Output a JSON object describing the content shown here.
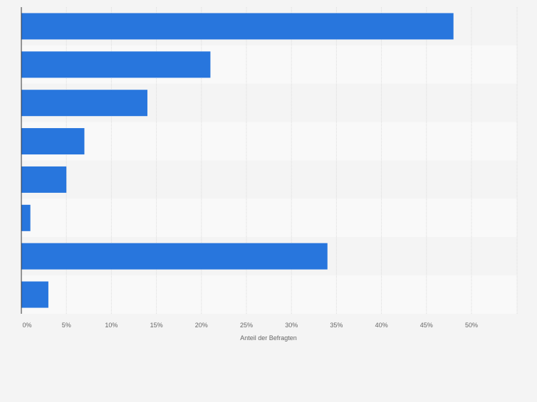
{
  "chart_data": {
    "type": "bar",
    "orientation": "horizontal",
    "categories": [
      "",
      "",
      "",
      "",
      "",
      "",
      "",
      ""
    ],
    "values": [
      48,
      21,
      14,
      7,
      5,
      1,
      34,
      3
    ],
    "xlabel": "Anteil der Befragten",
    "ylabel": "",
    "xlim": [
      0,
      55
    ],
    "x_ticks": [
      0,
      5,
      10,
      15,
      20,
      25,
      30,
      35,
      40,
      45,
      50
    ],
    "x_tick_labels": [
      "0%",
      "5%",
      "10%",
      "15%",
      "20%",
      "25%",
      "30%",
      "35%",
      "40%",
      "45%",
      "50%"
    ],
    "grid": true,
    "legend": "none",
    "colors": {
      "bar": "#2876dd",
      "background": "#f4f4f4",
      "plot_band_light": "#f9f9f9",
      "plot_band_dark": "#f4f4f4",
      "grid": "#dcdcdc",
      "axis": "#333333",
      "tick_text": "#666666"
    }
  }
}
